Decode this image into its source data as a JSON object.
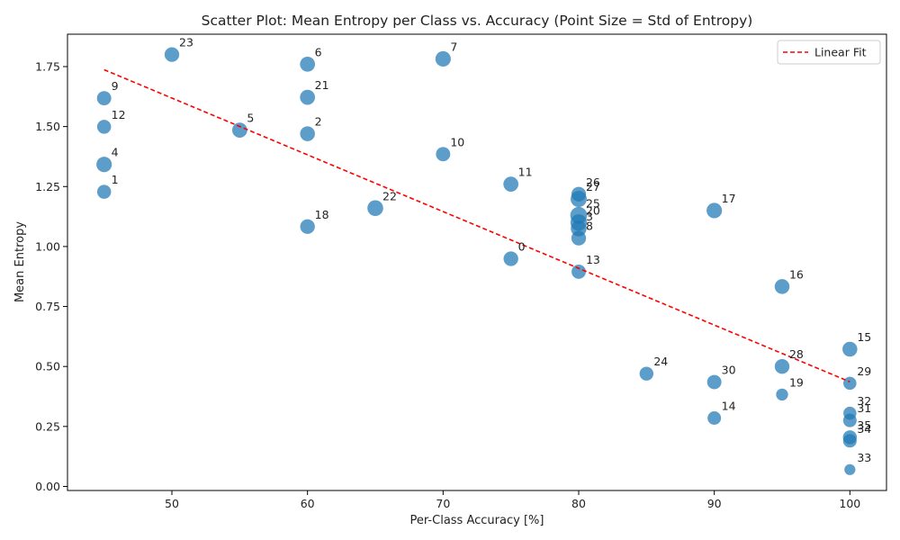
{
  "chart_data": {
    "type": "scatter",
    "title": "Scatter Plot: Mean Entropy per Class vs. Accuracy (Point Size = Std of Entropy)",
    "xlabel": "Per-Class Accuracy [%]",
    "ylabel": "Mean Entropy",
    "xlim": [
      42.3,
      102.7
    ],
    "ylim": [
      -0.017,
      1.885
    ],
    "xticks": [
      50,
      60,
      70,
      80,
      90,
      100
    ],
    "yticks": [
      0.0,
      0.25,
      0.5,
      0.75,
      1.0,
      1.25,
      1.5,
      1.75
    ],
    "grid": false,
    "legend_position": "top-right",
    "point_color": "#1f77b4",
    "fit_color": "#ff0000",
    "series": [
      {
        "name": "",
        "points": [
          {
            "label": "0",
            "x": 75,
            "y": 0.949,
            "size": 0.6
          },
          {
            "label": "1",
            "x": 45,
            "y": 1.228,
            "size": 0.5
          },
          {
            "label": "2",
            "x": 60,
            "y": 1.47,
            "size": 0.62
          },
          {
            "label": "3",
            "x": 80,
            "y": 1.075,
            "size": 0.75
          },
          {
            "label": "4",
            "x": 45,
            "y": 1.342,
            "size": 0.7
          },
          {
            "label": "5",
            "x": 55,
            "y": 1.485,
            "size": 0.65
          },
          {
            "label": "6",
            "x": 60,
            "y": 1.76,
            "size": 0.65
          },
          {
            "label": "7",
            "x": 70,
            "y": 1.782,
            "size": 0.7
          },
          {
            "label": "8",
            "x": 80,
            "y": 1.035,
            "size": 0.6
          },
          {
            "label": "9",
            "x": 45,
            "y": 1.618,
            "size": 0.55
          },
          {
            "label": "10",
            "x": 70,
            "y": 1.385,
            "size": 0.55
          },
          {
            "label": "11",
            "x": 75,
            "y": 1.26,
            "size": 0.65
          },
          {
            "label": "12",
            "x": 45,
            "y": 1.499,
            "size": 0.5
          },
          {
            "label": "13",
            "x": 80,
            "y": 0.895,
            "size": 0.55
          },
          {
            "label": "14",
            "x": 90,
            "y": 0.285,
            "size": 0.45
          },
          {
            "label": "15",
            "x": 100,
            "y": 0.572,
            "size": 0.62
          },
          {
            "label": "16",
            "x": 95,
            "y": 0.833,
            "size": 0.62
          },
          {
            "label": "17",
            "x": 90,
            "y": 1.15,
            "size": 0.7
          },
          {
            "label": "18",
            "x": 60,
            "y": 1.083,
            "size": 0.6
          },
          {
            "label": "19",
            "x": 95,
            "y": 0.383,
            "size": 0.28
          },
          {
            "label": "20",
            "x": 80,
            "y": 1.1,
            "size": 0.85
          },
          {
            "label": "21",
            "x": 60,
            "y": 1.622,
            "size": 0.65
          },
          {
            "label": "22",
            "x": 65,
            "y": 1.16,
            "size": 0.75
          },
          {
            "label": "23",
            "x": 50,
            "y": 1.8,
            "size": 0.6
          },
          {
            "label": "24",
            "x": 85,
            "y": 0.47,
            "size": 0.5
          },
          {
            "label": "25",
            "x": 80,
            "y": 1.13,
            "size": 0.9
          },
          {
            "label": "26",
            "x": 80,
            "y": 1.218,
            "size": 0.6
          },
          {
            "label": "27",
            "x": 80,
            "y": 1.198,
            "size": 0.8
          },
          {
            "label": "28",
            "x": 95,
            "y": 0.5,
            "size": 0.6
          },
          {
            "label": "29",
            "x": 100,
            "y": 0.43,
            "size": 0.4
          },
          {
            "label": "30",
            "x": 90,
            "y": 0.435,
            "size": 0.55
          },
          {
            "label": "31",
            "x": 100,
            "y": 0.275,
            "size": 0.45
          },
          {
            "label": "32",
            "x": 100,
            "y": 0.305,
            "size": 0.4
          },
          {
            "label": "33",
            "x": 100,
            "y": 0.07,
            "size": 0.18
          },
          {
            "label": "34",
            "x": 100,
            "y": 0.19,
            "size": 0.45
          },
          {
            "label": "35",
            "x": 100,
            "y": 0.205,
            "size": 0.5
          }
        ]
      }
    ],
    "fit_line": {
      "name": "Linear Fit",
      "x": [
        45,
        100
      ],
      "y": [
        1.737,
        0.436
      ]
    }
  }
}
